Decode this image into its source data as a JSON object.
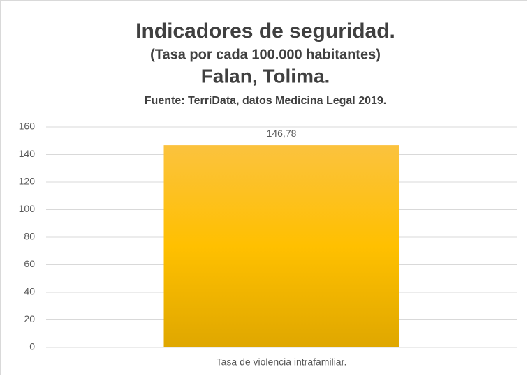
{
  "chart_data": {
    "type": "bar",
    "title": "Indicadores de seguridad.",
    "subtitle": "(Tasa por cada 100.000 habitantes)",
    "location": "Falan, Tolima.",
    "source": "Fuente: TerriData, datos Medicina Legal 2019.",
    "categories": [
      "Tasa de violencia intrafamiliar."
    ],
    "values": [
      146.78
    ],
    "value_labels": [
      "146,78"
    ],
    "gradient_colors": [
      "#fbc23e",
      "#ffc000",
      "#dfa700"
    ],
    "ylim": [
      0,
      160
    ],
    "yticks": [
      0,
      20,
      40,
      60,
      80,
      100,
      120,
      140,
      160
    ],
    "grid": true
  }
}
